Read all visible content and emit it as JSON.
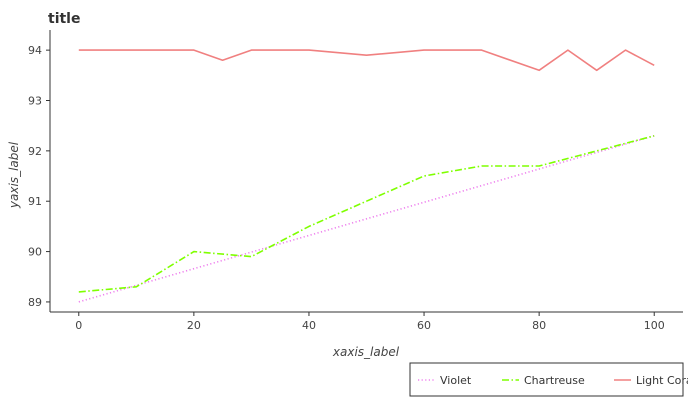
{
  "chart_data": {
    "type": "line",
    "title": "title",
    "xlabel": "xaxis_label",
    "ylabel": "yaxis_label",
    "xlim": [
      -5,
      105
    ],
    "ylim": [
      88.8,
      94.4
    ],
    "x_ticks": [
      0,
      20,
      40,
      60,
      80,
      100
    ],
    "y_ticks": [
      89,
      90,
      91,
      92,
      93,
      94
    ],
    "grid": false,
    "legend_placement": "bottom-right",
    "series": [
      {
        "name": "Violet",
        "color": "#ee82ee",
        "dash": "dotted",
        "x": [
          0,
          100
        ],
        "values": [
          89.0,
          92.3
        ]
      },
      {
        "name": "Chartreuse",
        "color": "#7fff00",
        "dash": "dashdot",
        "x": [
          0,
          10,
          20,
          30,
          40,
          50,
          60,
          70,
          80,
          90,
          100
        ],
        "values": [
          89.2,
          89.3,
          90.0,
          89.9,
          90.5,
          91.0,
          91.5,
          91.7,
          91.7,
          92.0,
          92.3
        ]
      },
      {
        "name": "Light Coral",
        "color": "#f08080",
        "dash": "solid",
        "x": [
          0,
          10,
          20,
          25,
          30,
          40,
          50,
          60,
          70,
          80,
          85,
          90,
          95,
          100
        ],
        "values": [
          94.0,
          94.0,
          94.0,
          93.8,
          94.0,
          94.0,
          93.9,
          94.0,
          94.0,
          93.6,
          94.0,
          93.6,
          94.0,
          93.7
        ]
      }
    ]
  }
}
